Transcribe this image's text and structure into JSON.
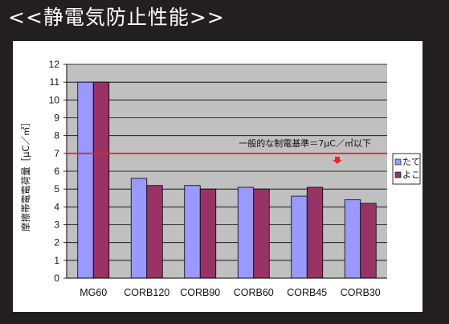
{
  "page": {
    "title": "<<静電気防止性能>>"
  },
  "chart_data": {
    "type": "bar",
    "categories": [
      "MG60",
      "CORB120",
      "CORB90",
      "CORB60",
      "CORB45",
      "CORB30"
    ],
    "series": [
      {
        "name": "たて",
        "values": [
          11.0,
          5.6,
          5.2,
          5.1,
          4.6,
          4.4
        ],
        "color": "#9999ff"
      },
      {
        "name": "よこ",
        "values": [
          11.0,
          5.2,
          5.0,
          5.0,
          5.1,
          4.2
        ],
        "color": "#993366"
      }
    ],
    "ylabel": "摩擦帯電電荷量［μC／㎡］",
    "ylim": [
      0,
      12
    ],
    "yticks": [
      0,
      1,
      2,
      3,
      4,
      5,
      6,
      7,
      8,
      9,
      10,
      11,
      12
    ],
    "grid": true,
    "plot_background": "#c0c0c0",
    "legend_position": "right",
    "reference_line": {
      "value": 7,
      "color": "#e8262a",
      "label": "一般的な制電基準＝7μC／㎡以下"
    }
  }
}
